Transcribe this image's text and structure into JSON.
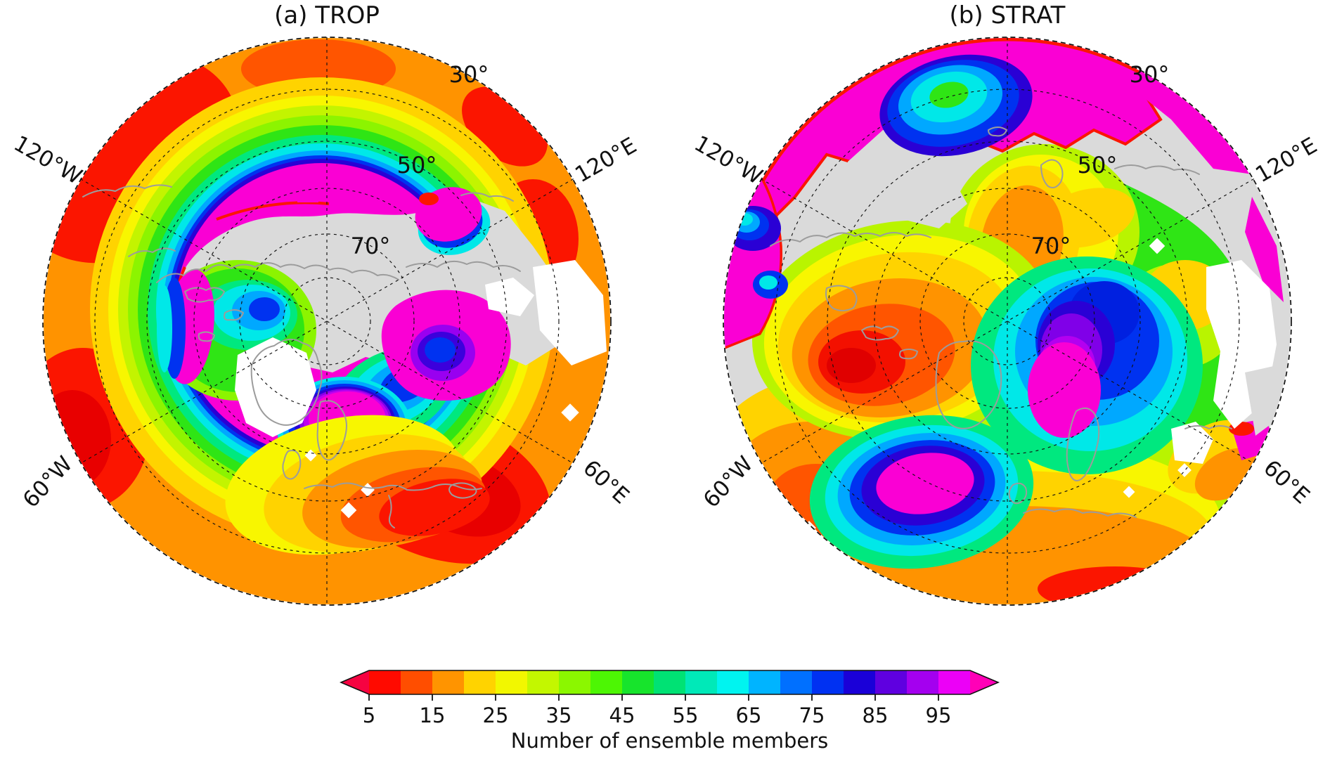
{
  "chart_data": {
    "type": "heatmap",
    "title": "Number of ensemble members shown as filled contours on two north polar stereographic maps",
    "panels": [
      {
        "label": "(a) TROP",
        "projection": "north polar stereographic (pole-centered, edge near 30N)",
        "content": "Filled contours of number of ensemble members. Magenta (>90) ring over northern mid-latitudes (Siberia, Scandinavia, NE Canada), rainbow transition bands, red/orange (5-20) toward the 30N boundary and over Europe/Mediterranean, gray no-data region over the central Arctic and eastern Siberia, white gaps over Greenland and near the eastern edge."
      },
      {
        "label": "(b) STRAT",
        "projection": "north polar stereographic (pole-centered, edge near 30N)",
        "content": "Filled contours of number of ensemble members. Green/yellow (25-50) field over Eurasia and the Arctic, orange-red (5-20) core over Canada/Greenland and near 60W, magenta (>90) band along the northern map edge and lobes over the North Atlantic and central Siberia with embedded blue/cyan cores, gray no-data over North America, white gaps along the eastern sector."
      }
    ],
    "colorbar": {
      "label": "Number of ensemble members",
      "ticks": [
        5,
        15,
        25,
        35,
        45,
        55,
        65,
        75,
        85,
        95
      ],
      "level_min": 5,
      "level_max": 100,
      "level_step": 5,
      "extend": "both",
      "segment_colors": [
        "#ff0a00",
        "#ff4e00",
        "#ff9400",
        "#ffd300",
        "#f2f700",
        "#c3f700",
        "#8bf700",
        "#4df604",
        "#17e42c",
        "#00e274",
        "#00e9b8",
        "#00f4f0",
        "#00b4ff",
        "#0070ff",
        "#0031f2",
        "#1a00d8",
        "#5f00e0",
        "#a400ef",
        "#ec00f7"
      ],
      "extend_left_color": "#f60341",
      "extend_right_color": "#ff00b7"
    },
    "graticule": {
      "lat_labels": [
        "30°",
        "50°",
        "70°"
      ],
      "lon_labels": [
        "120°W",
        "120°E",
        "60°W",
        "60°E"
      ],
      "lat_circles_deg": [
        40,
        50,
        60,
        70,
        80
      ],
      "meridian_spacing_deg": 60
    }
  }
}
